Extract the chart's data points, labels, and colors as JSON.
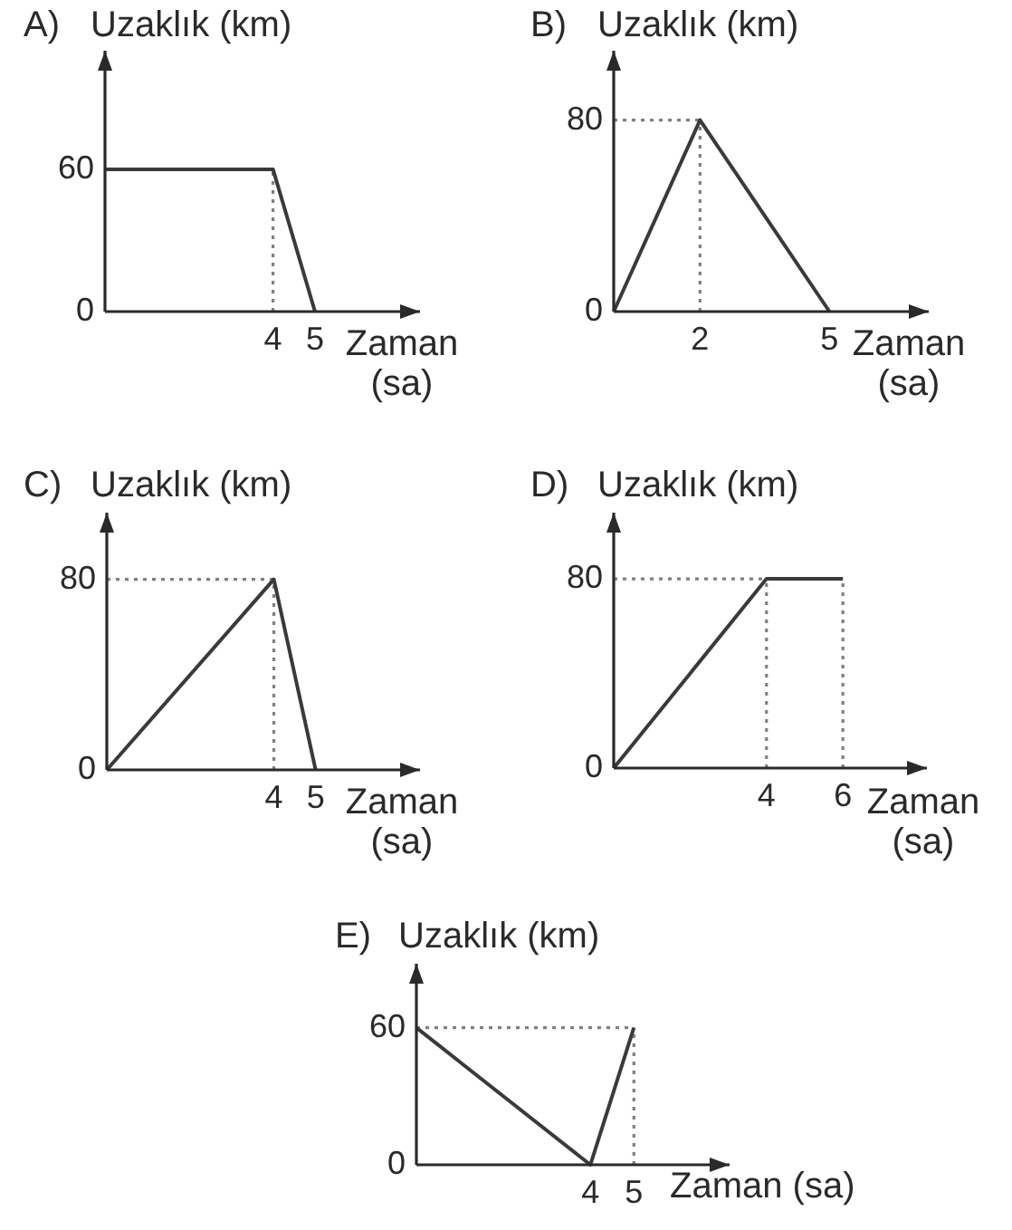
{
  "chart_data": [
    {
      "type": "line",
      "title": "A)",
      "ylabel": "Uzaklık (km)",
      "xlabel": "Zaman (sa)",
      "marker": "none",
      "line_style": "solid",
      "xlim": [
        0,
        7.5
      ],
      "ylim": [
        0,
        110
      ],
      "xticks": [
        4,
        5
      ],
      "yticks": [
        0,
        60
      ],
      "series": [
        {
          "color": "#808080",
          "x": [
            4,
            4
          ],
          "values": [
            0,
            60
          ],
          "line_style": "dotted"
        },
        {
          "color": "#3a3a3a",
          "x": [
            0,
            4,
            5
          ],
          "values": [
            60,
            60,
            0
          ]
        }
      ]
    },
    {
      "type": "line",
      "title": "B)",
      "ylabel": "Uzaklık (km)",
      "xlabel": "Zaman (sa)",
      "marker": "none",
      "line_style": "solid",
      "xlim": [
        0,
        7.3
      ],
      "ylim": [
        0,
        109
      ],
      "xticks": [
        2,
        5
      ],
      "yticks": [
        0,
        80
      ],
      "series": [
        {
          "color": "#808080",
          "x": [
            0,
            2
          ],
          "values": [
            80,
            80
          ],
          "line_style": "dotted"
        },
        {
          "color": "#808080",
          "x": [
            2,
            2
          ],
          "values": [
            0,
            80
          ],
          "line_style": "dotted"
        },
        {
          "color": "#3a3a3a",
          "x": [
            0,
            2,
            5
          ],
          "values": [
            0,
            80,
            0
          ]
        }
      ]
    },
    {
      "type": "line",
      "title": "C)",
      "ylabel": "Uzaklık (km)",
      "xlabel": "Zaman (sa)",
      "marker": "none",
      "line_style": "solid",
      "xlim": [
        0,
        7.5
      ],
      "ylim": [
        0,
        108
      ],
      "xticks": [
        4,
        5
      ],
      "yticks": [
        0,
        80
      ],
      "series": [
        {
          "color": "#808080",
          "x": [
            0,
            4
          ],
          "values": [
            80,
            80
          ],
          "line_style": "dotted"
        },
        {
          "color": "#808080",
          "x": [
            4,
            4
          ],
          "values": [
            0,
            80
          ],
          "line_style": "dotted"
        },
        {
          "color": "#3a3a3a",
          "x": [
            0,
            4,
            5
          ],
          "values": [
            0,
            80,
            0
          ]
        }
      ]
    },
    {
      "type": "line",
      "title": "D)",
      "ylabel": "Uzaklık (km)",
      "xlabel": "Zaman (sa)",
      "marker": "none",
      "line_style": "solid",
      "xlim": [
        0,
        8.2
      ],
      "ylim": [
        0,
        108
      ],
      "xticks": [
        4,
        6
      ],
      "yticks": [
        0,
        80
      ],
      "series": [
        {
          "color": "#808080",
          "x": [
            0,
            4
          ],
          "values": [
            80,
            80
          ],
          "line_style": "dotted"
        },
        {
          "color": "#808080",
          "x": [
            4,
            4
          ],
          "values": [
            0,
            80
          ],
          "line_style": "dotted"
        },
        {
          "color": "#808080",
          "x": [
            6,
            6
          ],
          "values": [
            0,
            80
          ],
          "line_style": "dotted"
        },
        {
          "color": "#3a3a3a",
          "x": [
            0,
            4,
            6
          ],
          "values": [
            0,
            80,
            80
          ]
        }
      ]
    },
    {
      "type": "line",
      "title": "E)",
      "ylabel": "Uzaklık (km)",
      "xlabel": "Zaman (sa)",
      "marker": "none",
      "line_style": "solid",
      "xlim": [
        0,
        7.2
      ],
      "ylim": [
        0,
        88
      ],
      "xticks": [
        4,
        5
      ],
      "yticks": [
        0,
        60
      ],
      "series": [
        {
          "color": "#808080",
          "x": [
            0,
            5
          ],
          "values": [
            60,
            60
          ],
          "line_style": "dotted"
        },
        {
          "color": "#808080",
          "x": [
            5,
            5
          ],
          "values": [
            0,
            60
          ],
          "line_style": "dotted"
        },
        {
          "color": "#3a3a3a",
          "x": [
            0,
            4,
            5
          ],
          "values": [
            60,
            0,
            60
          ]
        }
      ]
    }
  ]
}
